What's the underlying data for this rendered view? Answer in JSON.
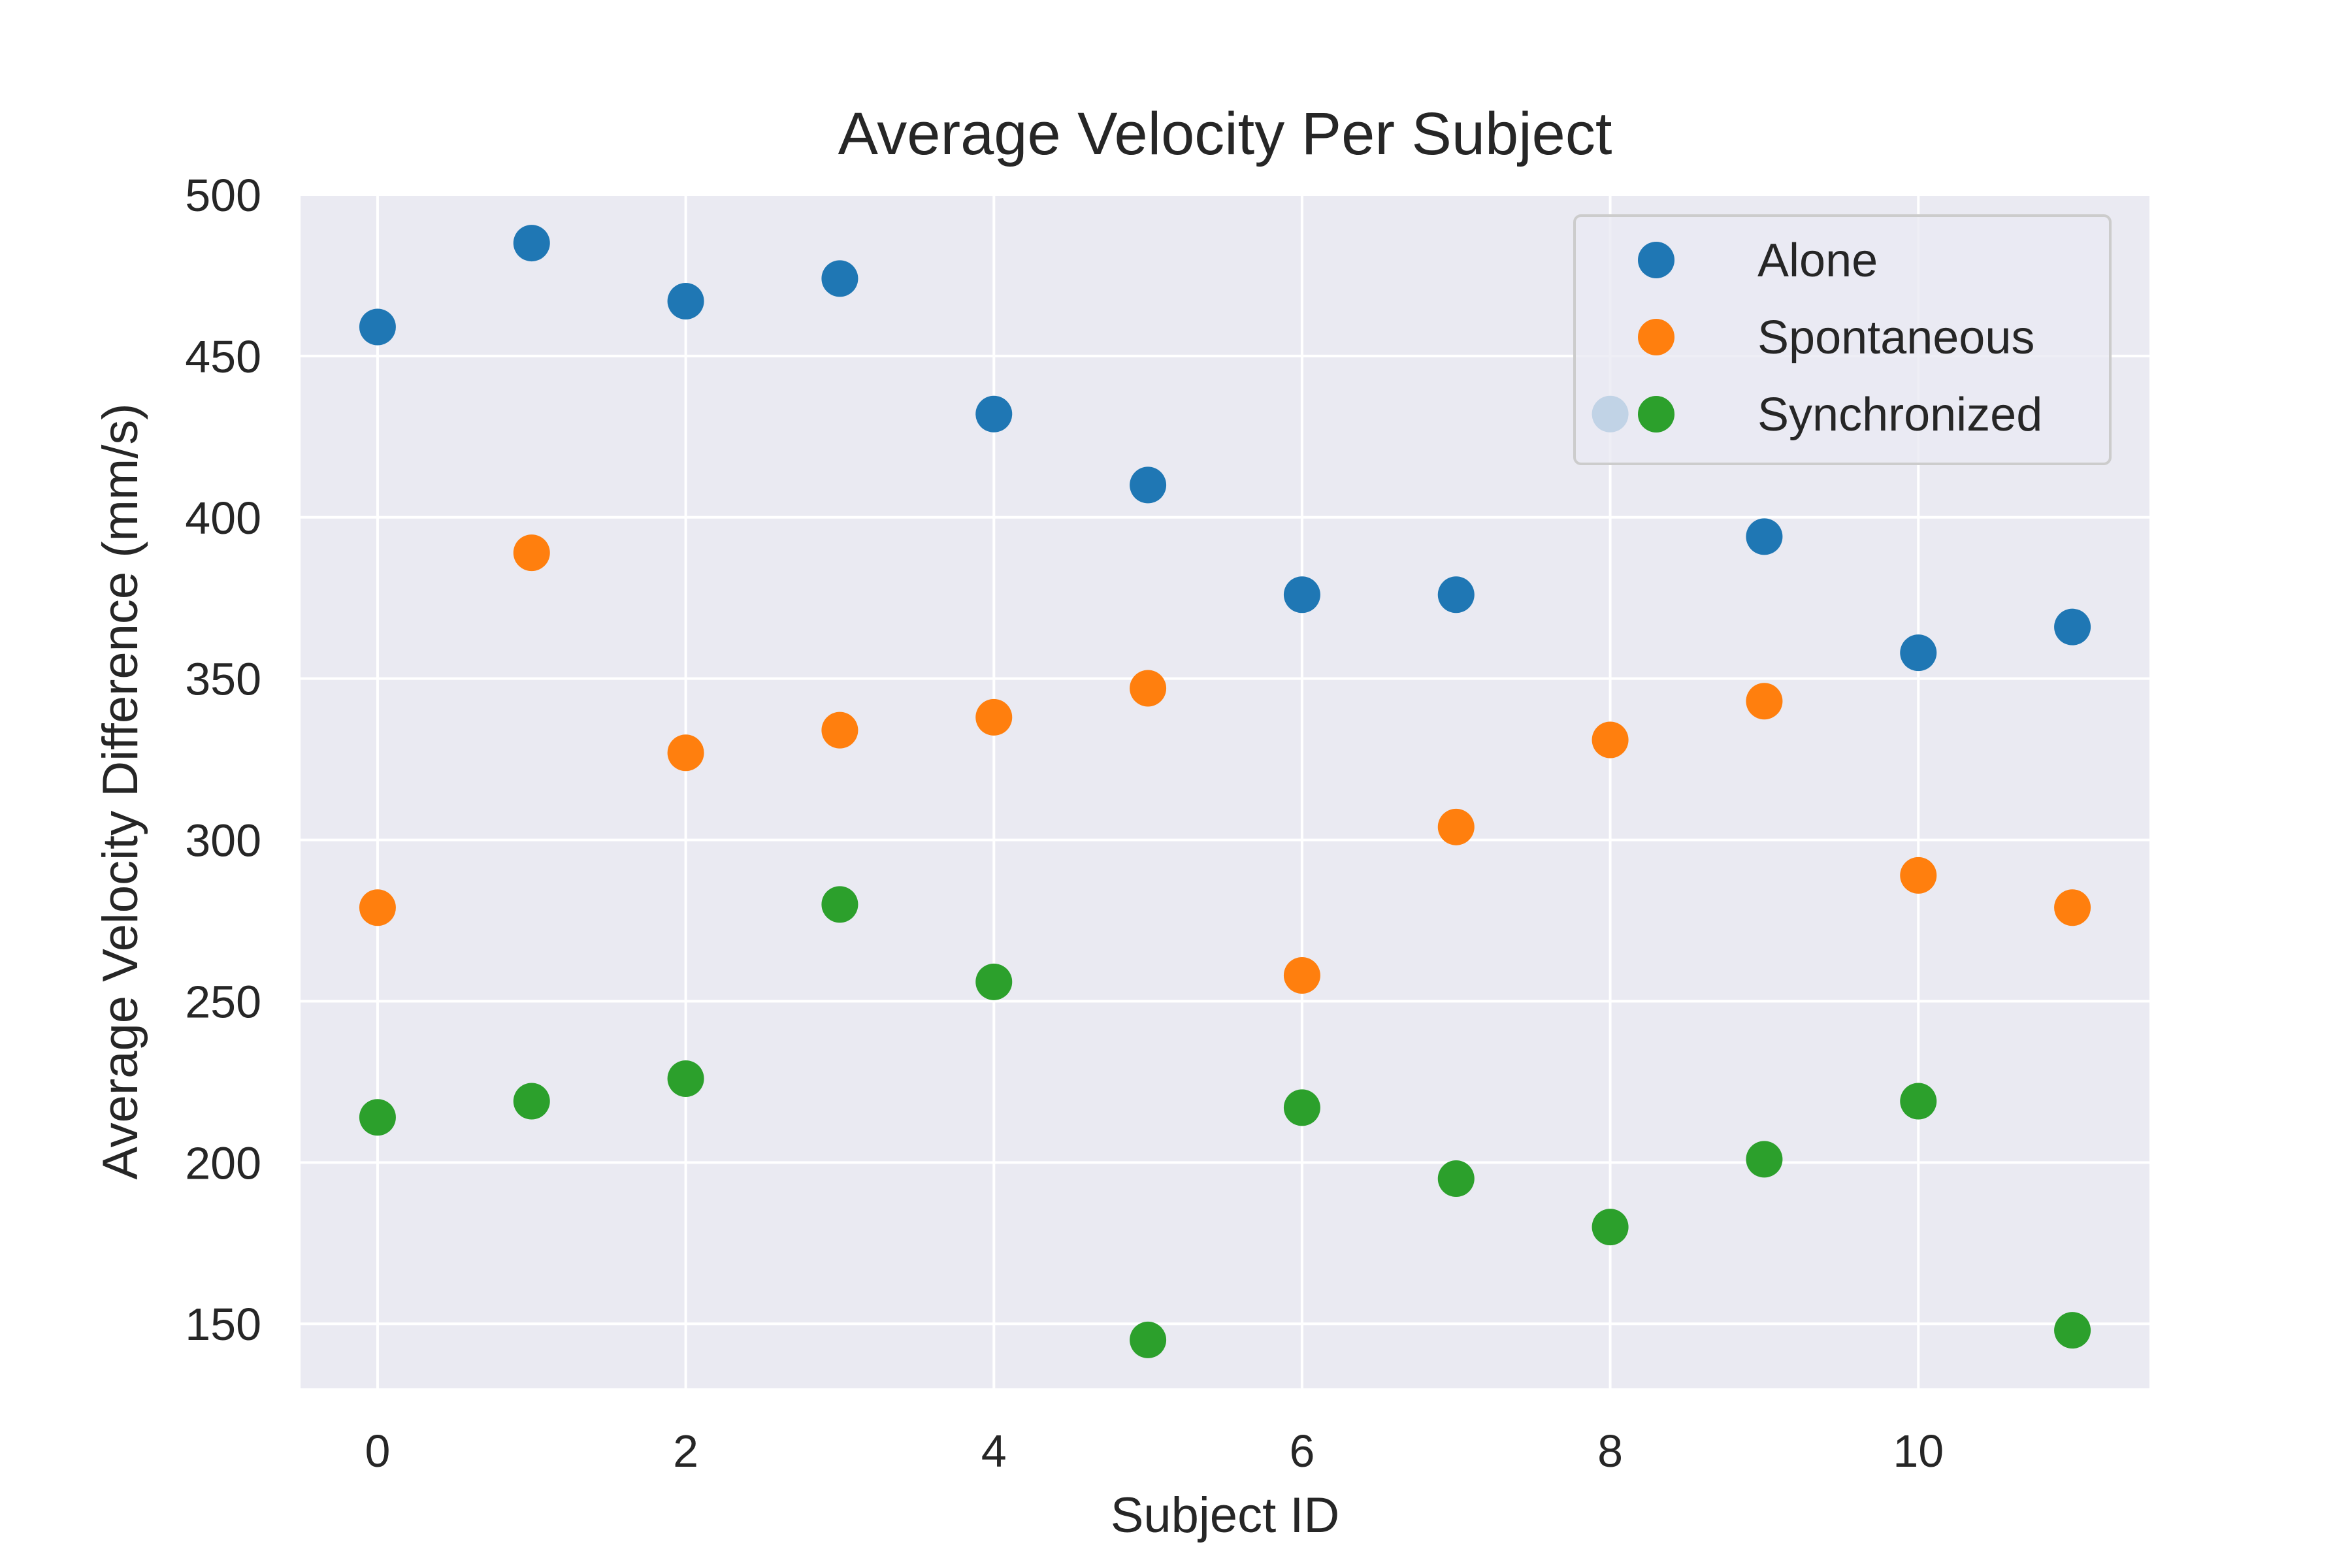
{
  "chart_data": {
    "type": "scatter",
    "title": "Average Velocity Per Subject",
    "xlabel": "Subject ID",
    "ylabel": "Average Velocity Difference (mm/s)",
    "xlim": [
      -0.5,
      11.5
    ],
    "ylim": [
      130,
      500
    ],
    "xticks": [
      0,
      2,
      4,
      6,
      8,
      10
    ],
    "yticks": [
      150,
      200,
      250,
      300,
      350,
      400,
      450,
      500
    ],
    "grid": true,
    "legend_position": "top-right",
    "x": [
      0,
      1,
      2,
      3,
      4,
      5,
      6,
      7,
      8,
      9,
      10,
      11
    ],
    "series": [
      {
        "name": "Alone",
        "color": "#1f77b4",
        "values": [
          459,
          485,
          467,
          474,
          432,
          410,
          376,
          376,
          432,
          394,
          358,
          366
        ]
      },
      {
        "name": "Spontaneous",
        "color": "#ff7f0e",
        "values": [
          279,
          389,
          327,
          334,
          338,
          347,
          258,
          304,
          331,
          343,
          289,
          279
        ]
      },
      {
        "name": "Synchronized",
        "color": "#2ca02c",
        "values": [
          214,
          219,
          226,
          280,
          256,
          145,
          217,
          195,
          180,
          201,
          219,
          148
        ]
      }
    ]
  }
}
